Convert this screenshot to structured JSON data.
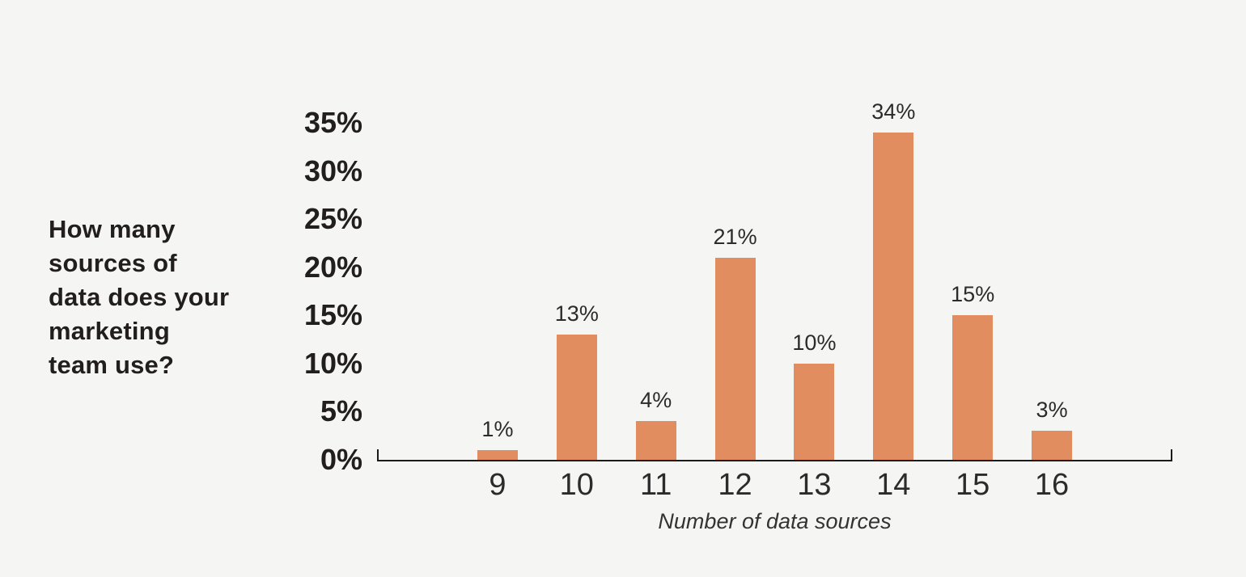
{
  "page": {
    "background_color": "#f5f5f4"
  },
  "chart_data": {
    "type": "bar",
    "title": "How many sources of data does your marketing team use?",
    "title_lines": [
      "How many",
      "sources of",
      "data does your",
      "marketing",
      "team use?"
    ],
    "categories": [
      "9",
      "10",
      "11",
      "12",
      "13",
      "14",
      "15",
      "16"
    ],
    "values": [
      1,
      13,
      4,
      21,
      10,
      34,
      15,
      3
    ],
    "value_labels": [
      "1%",
      "13%",
      "4%",
      "21%",
      "10%",
      "34%",
      "15%",
      "3%"
    ],
    "xlabel": "Number of data sources",
    "ylabel": "",
    "ylim": [
      0,
      35
    ],
    "y_ticks": [
      {
        "value": 35,
        "label": "35%"
      },
      {
        "value": 30,
        "label": "30%"
      },
      {
        "value": 25,
        "label": "25%"
      },
      {
        "value": 20,
        "label": "20%"
      },
      {
        "value": 15,
        "label": "15%"
      },
      {
        "value": 10,
        "label": "10%"
      },
      {
        "value": 5,
        "label": "5%"
      },
      {
        "value": 0,
        "label": "0%"
      }
    ],
    "grid": false,
    "legend": null,
    "bar_color": "#e28d5f",
    "axis_color": "#1a1a1a",
    "label_color": "#2b2b2b",
    "title_color": "#221e1f"
  }
}
